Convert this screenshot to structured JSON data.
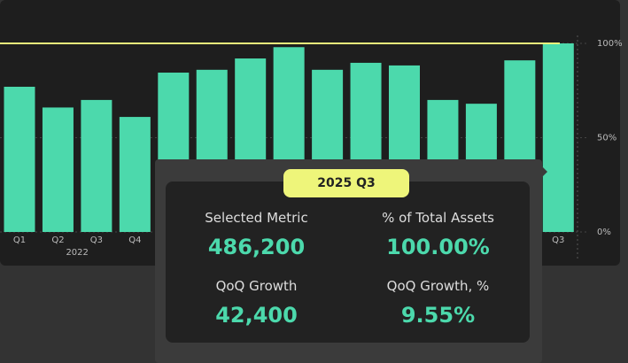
{
  "chart_data": {
    "type": "bar",
    "categories": [
      "Q1",
      "Q2",
      "Q3",
      "Q4",
      null,
      null,
      null,
      null,
      null,
      null,
      null,
      null,
      null,
      null,
      "Q3"
    ],
    "group_label": "2022",
    "values": [
      77,
      66,
      70,
      61,
      84.5,
      86,
      92,
      98,
      86,
      89.7,
      88.3,
      70,
      68,
      91,
      100
    ],
    "color": "#4cd9ac",
    "ylim": [
      0,
      100
    ],
    "yticks": [
      {
        "value": 0,
        "label": "0%"
      },
      {
        "value": 50,
        "label": "50%"
      },
      {
        "value": 100,
        "label": "100%"
      }
    ],
    "reference_line": 100,
    "reference_color": "#e8f27c",
    "grid": true
  },
  "tooltip": {
    "title": "2025 Q3",
    "items": [
      {
        "label": "Selected Metric",
        "value": "486,200"
      },
      {
        "label": "% of Total Assets",
        "value": "100.00%"
      },
      {
        "label": "QoQ Growth",
        "value": "42,400"
      },
      {
        "label": "QoQ Growth, %",
        "value": "9.55%"
      }
    ]
  }
}
